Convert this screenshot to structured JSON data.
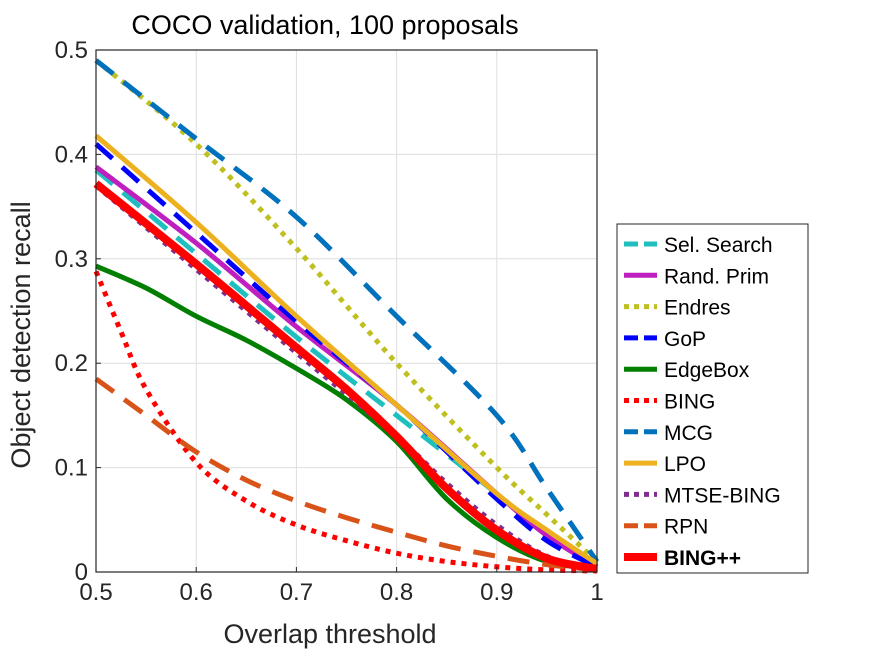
{
  "chart_data": {
    "type": "line",
    "title": "COCO validation, 100 proposals",
    "xlabel": "Overlap threshold",
    "ylabel": "Object detection recall",
    "xlim": [
      0.5,
      1
    ],
    "ylim": [
      0,
      0.5
    ],
    "xticks": [
      "0.5",
      "0.6",
      "0.7",
      "0.8",
      "0.9",
      "1"
    ],
    "yticks": [
      "0",
      "0.1",
      "0.2",
      "0.3",
      "0.4",
      "0.5"
    ],
    "grid": true,
    "legend_position": "right",
    "series": [
      {
        "name": "Sel. Search",
        "color": "#1fbfbf",
        "style": "dashed",
        "x": [
          0.5,
          0.6,
          0.7,
          0.8,
          0.9,
          0.95,
          1.0
        ],
        "y": [
          0.385,
          0.305,
          0.225,
          0.15,
          0.075,
          0.035,
          0.005
        ]
      },
      {
        "name": "Rand. Prim",
        "color": "#bf1fbf",
        "style": "solid",
        "x": [
          0.5,
          0.6,
          0.7,
          0.8,
          0.9,
          0.95,
          1.0
        ],
        "y": [
          0.388,
          0.315,
          0.235,
          0.16,
          0.075,
          0.035,
          0.005
        ]
      },
      {
        "name": "Endres",
        "color": "#bfbf1f",
        "style": "dotted",
        "x": [
          0.5,
          0.6,
          0.7,
          0.8,
          0.9,
          0.95,
          1.0
        ],
        "y": [
          0.49,
          0.41,
          0.31,
          0.2,
          0.1,
          0.055,
          0.01
        ]
      },
      {
        "name": "GoP",
        "color": "#0000ff",
        "style": "dashed",
        "x": [
          0.5,
          0.6,
          0.7,
          0.8,
          0.9,
          0.95,
          1.0
        ],
        "y": [
          0.41,
          0.325,
          0.24,
          0.16,
          0.07,
          0.03,
          0.005
        ]
      },
      {
        "name": "EdgeBox",
        "color": "#007f00",
        "style": "solid",
        "x": [
          0.5,
          0.55,
          0.6,
          0.65,
          0.7,
          0.75,
          0.8,
          0.85,
          0.9,
          0.95,
          1.0
        ],
        "y": [
          0.293,
          0.272,
          0.245,
          0.222,
          0.195,
          0.165,
          0.125,
          0.07,
          0.033,
          0.01,
          0.003
        ]
      },
      {
        "name": "BING",
        "color": "#ff0000",
        "style": "dotted",
        "x": [
          0.5,
          0.525,
          0.55,
          0.6,
          0.65,
          0.7,
          0.75,
          0.8,
          0.85,
          0.9,
          0.95,
          1.0
        ],
        "y": [
          0.288,
          0.23,
          0.175,
          0.105,
          0.068,
          0.045,
          0.03,
          0.018,
          0.01,
          0.005,
          0.002,
          0.001
        ]
      },
      {
        "name": "MCG",
        "color": "#0072bd",
        "style": "dashed",
        "x": [
          0.5,
          0.6,
          0.7,
          0.8,
          0.9,
          0.95,
          1.0
        ],
        "y": [
          0.49,
          0.415,
          0.34,
          0.245,
          0.15,
          0.08,
          0.01
        ]
      },
      {
        "name": "LPO",
        "color": "#edb120",
        "style": "solid",
        "x": [
          0.5,
          0.6,
          0.7,
          0.8,
          0.9,
          0.95,
          1.0
        ],
        "y": [
          0.418,
          0.335,
          0.245,
          0.16,
          0.075,
          0.04,
          0.008
        ]
      },
      {
        "name": "MTSE-BING",
        "color": "#7e2f8e",
        "style": "dotted",
        "x": [
          0.5,
          0.6,
          0.7,
          0.8,
          0.85,
          0.9,
          0.95,
          1.0
        ],
        "y": [
          0.37,
          0.29,
          0.21,
          0.13,
          0.085,
          0.045,
          0.015,
          0.003
        ]
      },
      {
        "name": "RPN",
        "color": "#d95319",
        "style": "dashed",
        "x": [
          0.5,
          0.55,
          0.6,
          0.65,
          0.7,
          0.75,
          0.8,
          0.85,
          0.9,
          0.95,
          1.0
        ],
        "y": [
          0.185,
          0.15,
          0.115,
          0.088,
          0.068,
          0.052,
          0.038,
          0.025,
          0.015,
          0.007,
          0.002
        ]
      },
      {
        "name": "BING++",
        "color": "#ff0000",
        "style": "solid",
        "bold": true,
        "x": [
          0.5,
          0.6,
          0.7,
          0.75,
          0.8,
          0.85,
          0.9,
          0.95,
          1.0
        ],
        "y": [
          0.372,
          0.295,
          0.215,
          0.175,
          0.13,
          0.08,
          0.04,
          0.013,
          0.003
        ]
      }
    ]
  }
}
